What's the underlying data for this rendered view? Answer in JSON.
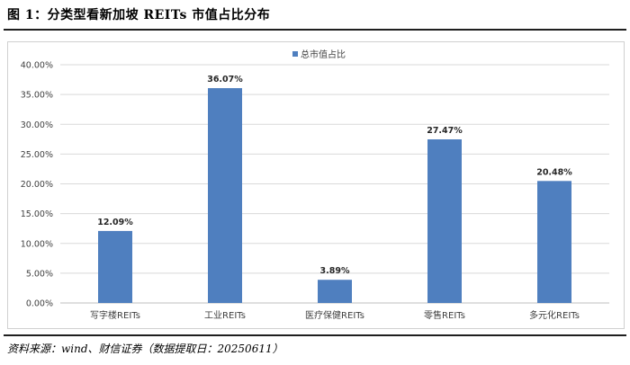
{
  "figure_title": "图 1：分类型看新加坡 REITs 市值占比分布",
  "source_note": "资料来源：wind、财信证券（数据提取日：20250611）",
  "colors": {
    "bar": "#4f7fbf",
    "grid": "#d9d9d9",
    "axis": "#bfbfbf",
    "rule": "#1f1f1f"
  },
  "chart_data": {
    "type": "bar",
    "title": "",
    "legend": {
      "label": "总市值占比",
      "position": "top-center"
    },
    "categories": [
      "写字楼REITs",
      "工业REITs",
      "医疗保健REITs",
      "零售REITs",
      "多元化REITs"
    ],
    "values": [
      12.09,
      36.07,
      3.89,
      27.47,
      20.48
    ],
    "data_labels": [
      "12.09%",
      "36.07%",
      "3.89%",
      "27.47%",
      "20.48%"
    ],
    "yticks": [
      "0.00%",
      "5.00%",
      "10.00%",
      "15.00%",
      "20.00%",
      "25.00%",
      "30.00%",
      "35.00%",
      "40.00%"
    ],
    "ylim": [
      0,
      40
    ],
    "grid": true,
    "xlabel": "",
    "ylabel": ""
  }
}
